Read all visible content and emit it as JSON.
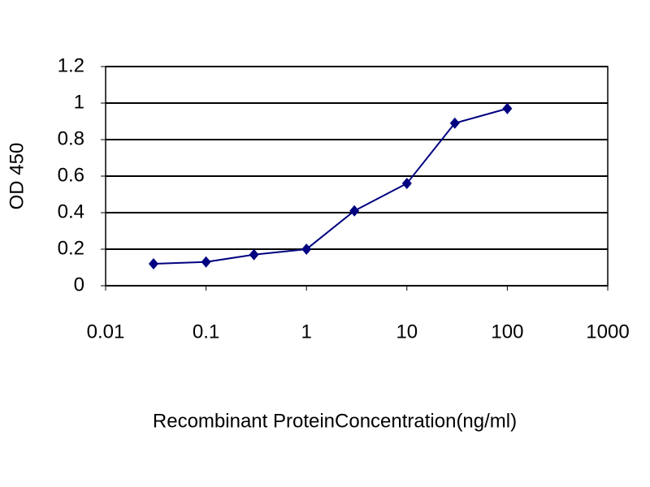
{
  "chart_data": {
    "type": "line",
    "x_label": "Recombinant ProteinConcentration(ng/ml)",
    "y_label": "OD 450",
    "x": [
      0.03,
      0.1,
      0.3,
      1,
      3,
      10,
      30,
      100
    ],
    "series": [
      {
        "color": "#000080",
        "values": [
          0.12,
          0.13,
          0.17,
          0.2,
          0.41,
          0.56,
          0.89,
          0.97
        ]
      }
    ],
    "xlim": [
      0.01,
      1000
    ],
    "xticks": [
      0.01,
      0.1,
      1,
      10,
      100,
      1000
    ],
    "xscale": "log",
    "ylim": [
      0,
      1.2
    ],
    "yticks": [
      0,
      0.2,
      0.4,
      0.6,
      0.8,
      1,
      1.2
    ],
    "grid": true
  }
}
